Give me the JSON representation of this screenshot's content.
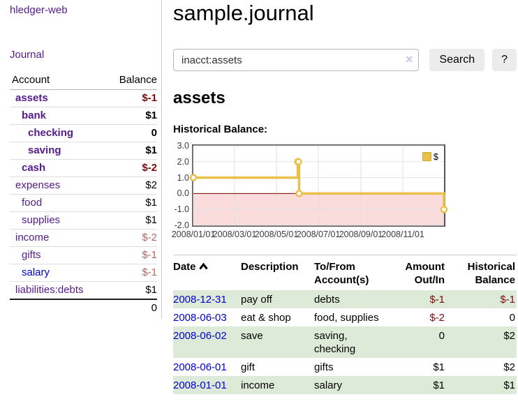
{
  "sidebar": {
    "app_title": "hledger-web",
    "journal_link": "Journal",
    "accounts": {
      "header_account": "Account",
      "header_balance": "Balance",
      "rows": [
        {
          "name": "assets",
          "balance": "$-1"
        },
        {
          "name": "bank",
          "balance": "$1"
        },
        {
          "name": "checking",
          "balance": "0"
        },
        {
          "name": "saving",
          "balance": "$1"
        },
        {
          "name": "cash",
          "balance": "$-2"
        },
        {
          "name": "expenses",
          "balance": "$2"
        },
        {
          "name": "food",
          "balance": "$1"
        },
        {
          "name": "supplies",
          "balance": "$1"
        },
        {
          "name": "income",
          "balance": "$-2"
        },
        {
          "name": "gifts",
          "balance": "$-1"
        },
        {
          "name": "salary",
          "balance": "$-1"
        },
        {
          "name": "liabilities:debts",
          "balance": "$1"
        }
      ],
      "total": "0"
    }
  },
  "main": {
    "title": "sample.journal",
    "search": {
      "query": "inacct:assets",
      "clear_icon": "×",
      "search_button": "Search",
      "help_button": "?"
    },
    "account_heading": "assets",
    "chart_heading": "Historical Balance:"
  },
  "chart_data": {
    "type": "line",
    "step": true,
    "title": "Historical Balance",
    "series": [
      {
        "name": "$",
        "color": "#e8c04a",
        "points": [
          [
            "2008-01-01",
            1
          ],
          [
            "2008-06-01",
            2
          ],
          [
            "2008-06-02",
            2
          ],
          [
            "2008-06-03",
            0
          ],
          [
            "2008-12-31",
            -1
          ]
        ]
      }
    ],
    "xlim": [
      "2008-01-01",
      "2008-12-31"
    ],
    "ylim": [
      -2,
      3
    ],
    "x_ticks": [
      {
        "date": "2008-01-01",
        "label": "2008/01/01"
      },
      {
        "date": "2008-03-01",
        "label": "2008/03/01"
      },
      {
        "date": "2008-05-01",
        "label": "2008/05/01"
      },
      {
        "date": "2008-07-01",
        "label": "2008/07/01"
      },
      {
        "date": "2008-09-01",
        "label": "2008/09/01"
      },
      {
        "date": "2008-11-01",
        "label": "2008/11/01"
      }
    ],
    "y_ticks": [
      {
        "value": 3,
        "label": "3.0"
      },
      {
        "value": 2,
        "label": "2.0"
      },
      {
        "value": 1,
        "label": "1.0"
      },
      {
        "value": 0,
        "label": "0.0"
      },
      {
        "value": -1,
        "label": "-1.0"
      },
      {
        "value": -2,
        "label": "-2.0"
      }
    ],
    "grid": true,
    "legend": {
      "label": "$",
      "position": "top-right"
    },
    "negative_region_color": "#fbdcdc",
    "zero_line_color": "#8b0000",
    "grid_color": "#e2e2e2"
  },
  "register": {
    "headers": {
      "date": "Date",
      "description": "Description",
      "tofrom": "To/From Account(s)",
      "amount": "Amount Out/In",
      "balance": "Historical Balance"
    },
    "rows": [
      {
        "date": "2008-12-31",
        "description": "pay off",
        "tofrom": "debts",
        "amount": "$-1",
        "balance": "$-1"
      },
      {
        "date": "2008-06-03",
        "description": "eat & shop",
        "tofrom": "food, supplies",
        "amount": "$-2",
        "balance": "0"
      },
      {
        "date": "2008-06-02",
        "description": "save",
        "tofrom": "saving, checking",
        "amount": "0",
        "balance": "$2"
      },
      {
        "date": "2008-06-01",
        "description": "gift",
        "tofrom": "gifts",
        "amount": "$1",
        "balance": "$2"
      },
      {
        "date": "2008-01-01",
        "description": "income",
        "tofrom": "salary",
        "amount": "$1",
        "balance": "$1"
      }
    ]
  }
}
